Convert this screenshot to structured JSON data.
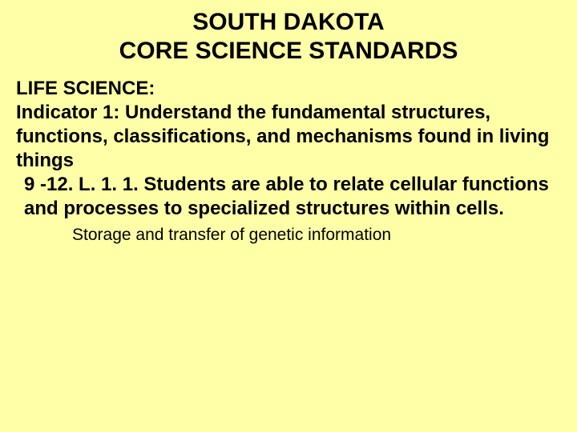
{
  "title_line1": "SOUTH DAKOTA",
  "title_line2": "CORE SCIENCE STANDARDS",
  "section_heading": "LIFE SCIENCE:",
  "indicator": "Indicator 1: Understand the fundamental structures, functions, classifications, and mechanisms found in living things",
  "standard": "9 -12. L. 1. 1.  Students are able to relate cellular functions and processes to specialized structures within cells.",
  "sub_item": "Storage and transfer of genetic information",
  "colors": {
    "background": "#ffffa8",
    "text": "#000000"
  },
  "fonts": {
    "title_size": 30,
    "body_size": 24,
    "sub_size": 21,
    "title_weight": "bold",
    "body_weight": "bold",
    "sub_weight": "normal"
  }
}
